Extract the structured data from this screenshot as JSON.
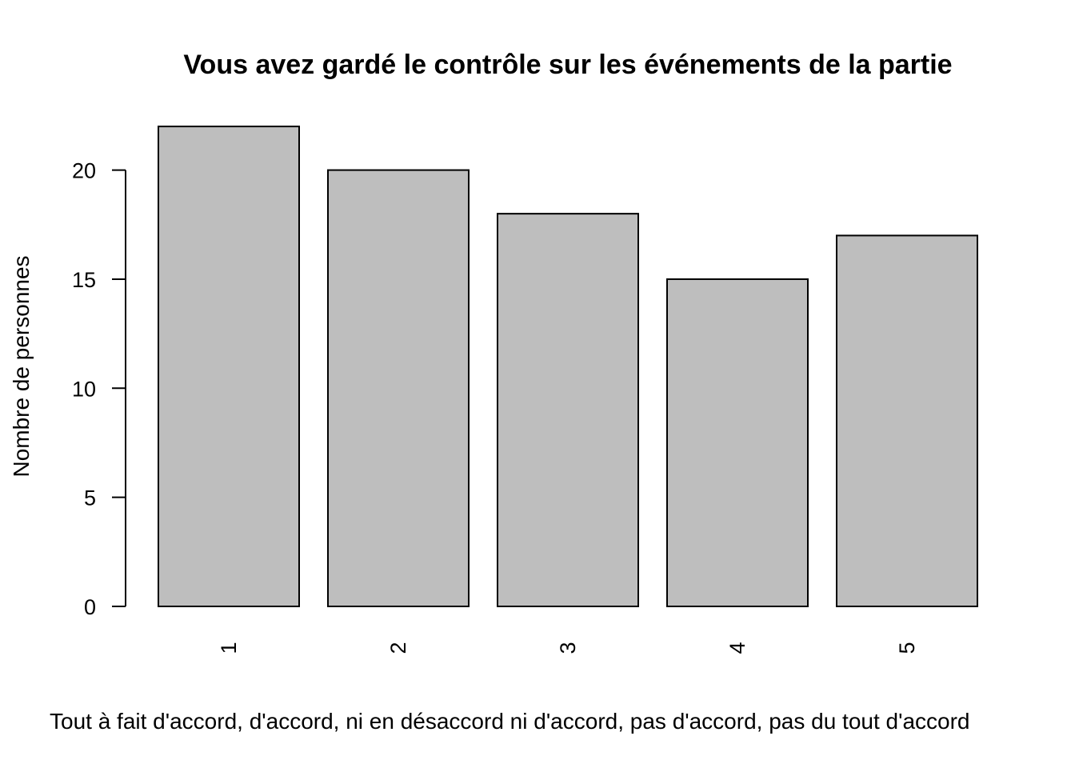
{
  "chart_data": {
    "type": "bar",
    "title": "Vous avez gardé le contrôle sur les événements de la partie",
    "xlabel": "Tout à fait d'accord, d'accord, ni en désaccord ni d'accord, pas d'accord, pas du tout d'accord",
    "ylabel": "Nombre de personnes",
    "categories": [
      "1",
      "2",
      "3",
      "4",
      "5"
    ],
    "values": [
      22,
      20,
      18,
      15,
      17
    ],
    "yticks": [
      "0",
      "5",
      "10",
      "15",
      "20"
    ],
    "ylim": [
      0,
      22
    ],
    "grid": false,
    "legend": "none",
    "bar_fill": "#bebebe",
    "bar_stroke": "#000000",
    "category_label_orientation": "rotated-vertical"
  }
}
